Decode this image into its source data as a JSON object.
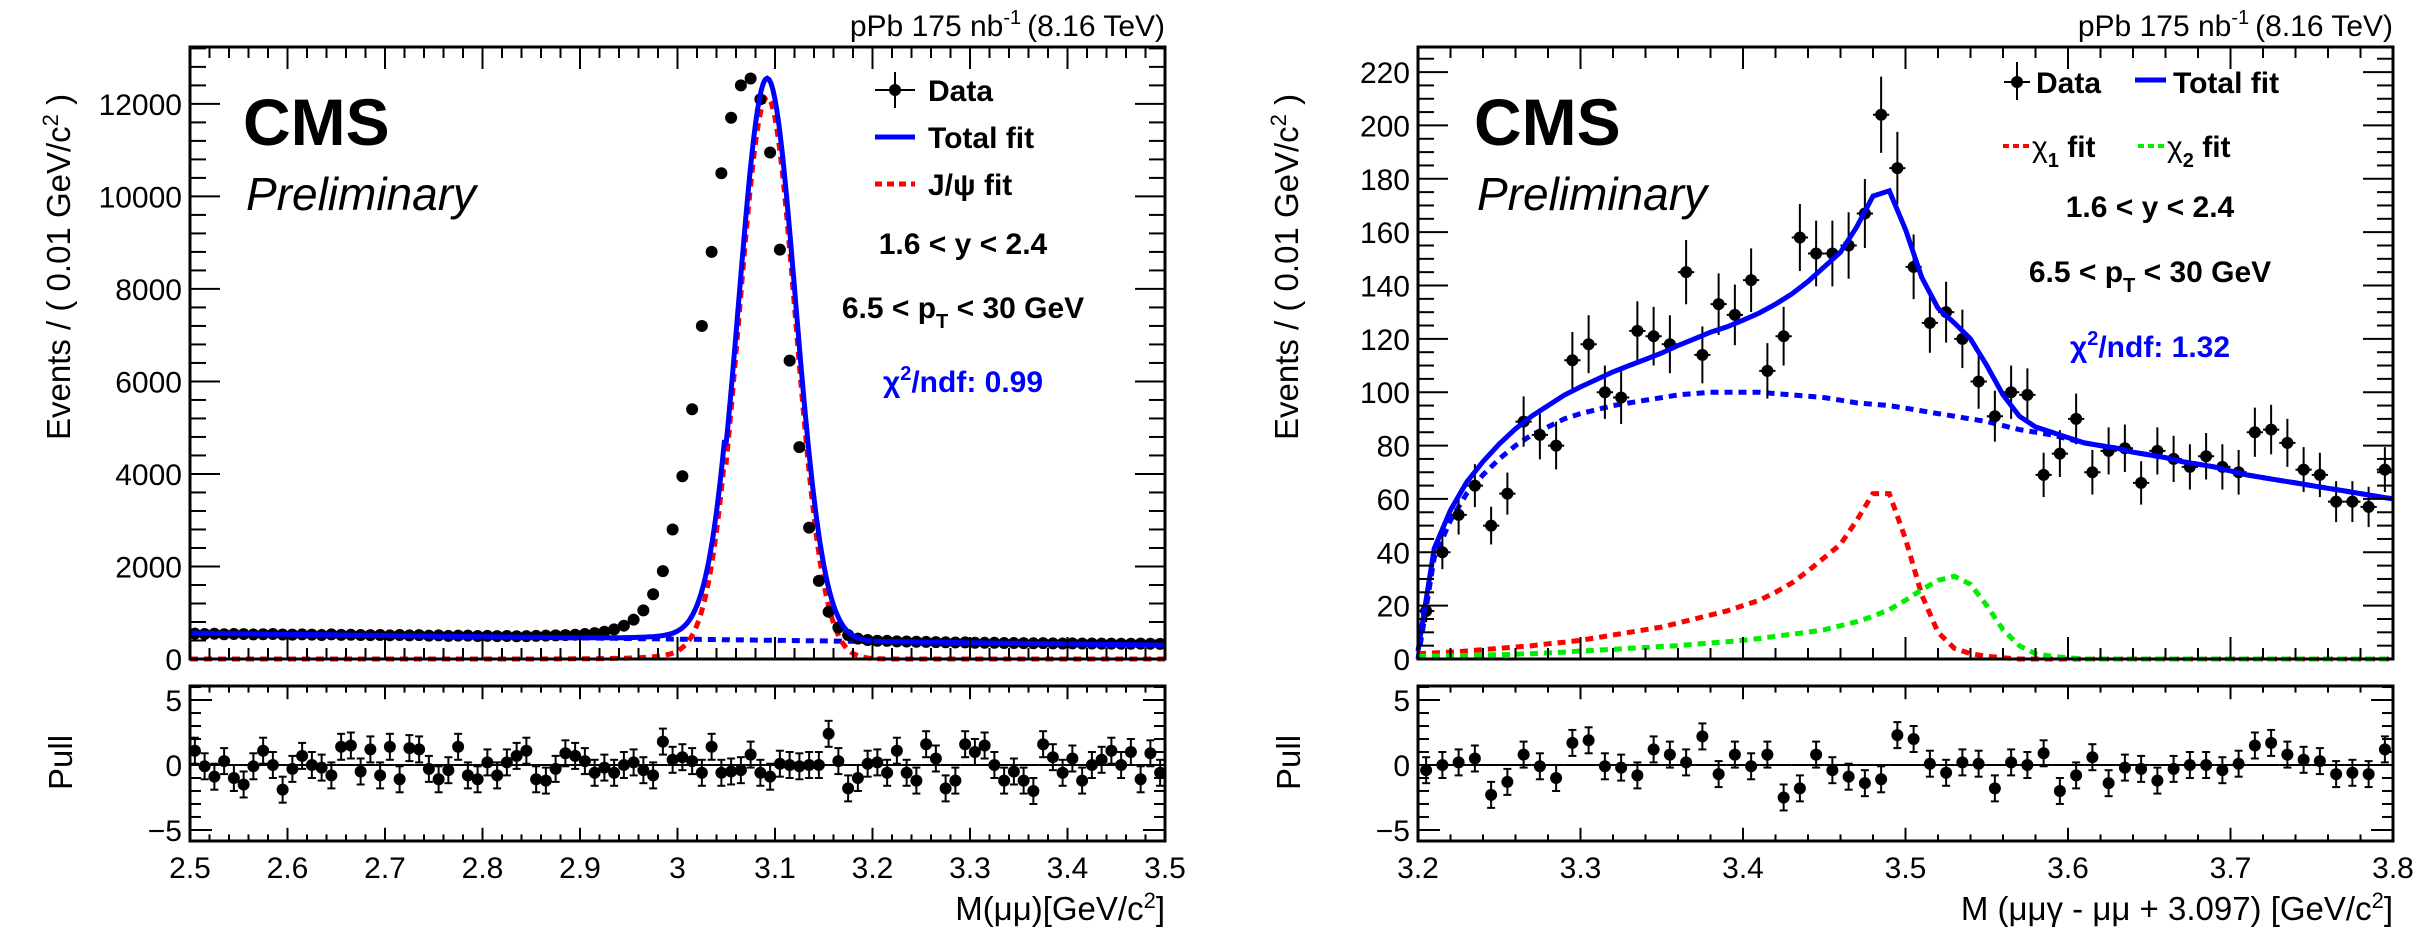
{
  "chart_data": [
    {
      "type": "line",
      "panel": "left",
      "experiment_label": "CMS",
      "status_label": "Preliminary",
      "lumi_label": {
        "system": "pPb 175 nb",
        "exponent": "-1",
        "energy": "(8.16 TeV)"
      },
      "xlabel": "M(μμ)[GeV/c",
      "xlabel_sup": "2",
      "xlabel_end": "]",
      "ylabel": "Events / ( 0.01 GeV/c",
      "ylabel_sup": "2",
      "ylabel_end": " )",
      "pull_ylabel": "Pull",
      "xlim": [
        2.5,
        3.5
      ],
      "ylim": [
        0,
        13230
      ],
      "pull_ylim": [
        -5.85,
        6.08
      ],
      "x_ticks": [
        2.5,
        2.6,
        2.7,
        2.8,
        2.9,
        3.0,
        3.1,
        3.2,
        3.3,
        3.4,
        3.5
      ],
      "x_tick_labels": [
        "2.5",
        "2.6",
        "2.7",
        "2.8",
        "2.9",
        "3",
        "3.1",
        "3.2",
        "3.3",
        "3.4",
        "3.5"
      ],
      "y_ticks": [
        0,
        2000,
        4000,
        6000,
        8000,
        10000,
        12000
      ],
      "y_tick_labels": [
        "0",
        "2000",
        "4000",
        "6000",
        "8000",
        "10000",
        "12000"
      ],
      "y_minor_step": 400,
      "pull_ticks": [
        -5,
        0,
        5
      ],
      "pull_tick_labels": [
        "−5",
        "0",
        "5"
      ],
      "legend": [
        {
          "label": "Data",
          "style": "data"
        },
        {
          "label": "Total fit",
          "style": "solid",
          "color": "#0000ff"
        },
        {
          "label": "J/ψ fit",
          "style": "dotted",
          "color": "#ff0000"
        }
      ],
      "annotations": {
        "rapidity": "1.6 < y < 2.4",
        "pt_pre": "6.5 < p",
        "pt_sub": "T",
        "pt_post": " < 30 GeV",
        "chi_pre": "χ",
        "chi_sup": "2",
        "chi_post": "/ndf: 0.99"
      },
      "bin_width": 0.01,
      "x_start": 2.505,
      "values": [
        549,
        541,
        546,
        536,
        541,
        539,
        531,
        536,
        541,
        529,
        526,
        531,
        528,
        520,
        531,
        522,
        525,
        520,
        515,
        520,
        512,
        518,
        510,
        515,
        505,
        510,
        500,
        505,
        505,
        498,
        500,
        495,
        498,
        492,
        495,
        500,
        505,
        510,
        515,
        525,
        540,
        560,
        590,
        640,
        720,
        850,
        1050,
        1400,
        1900,
        2800,
        3950,
        5400,
        7200,
        8800,
        10500,
        11700,
        12400,
        12550,
        12100,
        10950,
        8850,
        6450,
        4580,
        2840,
        1690,
        1020,
        680,
        520,
        440,
        410,
        395,
        392,
        382,
        378,
        372,
        370,
        365,
        362,
        358,
        360,
        352,
        350,
        350,
        345,
        347,
        343,
        340,
        342,
        338,
        336,
        338,
        334,
        334,
        332,
        333,
        331,
        330,
        332,
        329,
        328
      ],
      "errors_note": "Poisson",
      "fit": {
        "background_linear": {
          "x": [
            2.5,
            3.5
          ],
          "y": [
            560,
            300
          ]
        },
        "signal": {
          "mean": 3.092,
          "sigma": 0.029,
          "amplitude": 12150,
          "low_tail_strength": 0.035
        }
      },
      "pulls": [
        1.1,
        -0.1,
        -0.9,
        0.3,
        -1.0,
        -1.5,
        -0.1,
        1.1,
        0.0,
        -1.9,
        -0.3,
        0.7,
        0.0,
        -0.2,
        -0.8,
        1.4,
        1.5,
        -0.5,
        1.2,
        -0.8,
        1.4,
        -1.1,
        1.3,
        1.2,
        -0.3,
        -1.1,
        -0.4,
        1.4,
        -0.8,
        -1.1,
        0.2,
        -0.8,
        0.2,
        0.7,
        1.1,
        -1.1,
        -1.2,
        -0.3,
        0.9,
        0.7,
        0.3,
        -0.6,
        -0.2,
        -0.6,
        0.0,
        0.2,
        -0.4,
        -0.8,
        1.8,
        0.4,
        0.6,
        0.3,
        -0.6,
        1.4,
        -0.6,
        -0.5,
        -0.4,
        0.8,
        -0.6,
        -0.9,
        0.1,
        0.0,
        -0.1,
        0.0,
        0.0,
        2.4,
        0.3,
        -1.8,
        -1.0,
        0.1,
        0.2,
        -0.6,
        1.1,
        -0.6,
        -1.2,
        1.6,
        0.5,
        -1.8,
        -1.2,
        1.6,
        1.0,
        1.5,
        0.0,
        -1.2,
        -0.5,
        -1.2,
        -2.0,
        1.6,
        0.6,
        -0.6,
        0.5,
        -1.2,
        0.0,
        0.4,
        1.1,
        0.0,
        1.0,
        -1.1,
        0.9,
        -0.6
      ]
    },
    {
      "type": "line",
      "panel": "right",
      "experiment_label": "CMS",
      "status_label": "Preliminary",
      "lumi_label": {
        "system": "pPb 175 nb",
        "exponent": "-1",
        "energy": "(8.16 TeV)"
      },
      "xlabel": "M (μμγ - μμ + 3.097) [GeV/c",
      "xlabel_sup": "2",
      "xlabel_end": "]",
      "ylabel": "Events / ( 0.01 GeV/c",
      "ylabel_sup": "2",
      "ylabel_end": " )",
      "pull_ylabel": "Pull",
      "xlim": [
        3.2,
        3.8
      ],
      "ylim": [
        0,
        229.4
      ],
      "pull_ylim": [
        -5.85,
        6.08
      ],
      "x_ticks": [
        3.2,
        3.3,
        3.4,
        3.5,
        3.6,
        3.7,
        3.8
      ],
      "x_tick_labels": [
        "3.2",
        "3.3",
        "3.4",
        "3.5",
        "3.6",
        "3.7",
        "3.8"
      ],
      "y_ticks": [
        0,
        20,
        40,
        60,
        80,
        100,
        120,
        140,
        160,
        180,
        200,
        220
      ],
      "y_tick_labels": [
        "0",
        "20",
        "40",
        "60",
        "80",
        "100",
        "120",
        "140",
        "160",
        "180",
        "200",
        "220"
      ],
      "y_minor_step": 5,
      "pull_ticks": [
        -5,
        0,
        5
      ],
      "pull_tick_labels": [
        "−5",
        "0",
        "5"
      ],
      "legend": [
        {
          "label": "Data",
          "style": "data"
        },
        {
          "label": "Total fit",
          "style": "solid",
          "color": "#0000ff"
        },
        {
          "label": "χ",
          "sub": "1",
          "suffix": " fit",
          "style": "dotted",
          "color": "#ff0000"
        },
        {
          "label": "χ",
          "sub": "2",
          "suffix": " fit",
          "style": "dotted",
          "color": "#00ee00"
        }
      ],
      "annotations": {
        "rapidity": "1.6 < y < 2.4",
        "pt_pre": "6.5 < p",
        "pt_sub": "T",
        "pt_post": " < 30 GeV",
        "chi_pre": "χ",
        "chi_sup": "2",
        "chi_post": "/ndf: 1.32"
      },
      "bin_width": 0.01,
      "x_start": 3.205,
      "values": [
        18,
        40,
        54,
        65,
        50,
        62,
        89,
        84,
        80,
        112,
        118,
        100,
        98,
        123,
        121,
        118,
        145,
        114,
        133,
        129,
        142,
        108,
        121,
        158,
        152,
        152,
        155,
        167,
        204,
        184,
        147,
        126,
        130,
        120,
        104,
        91,
        100,
        99,
        69,
        77,
        90,
        70,
        78,
        79,
        66,
        78,
        75,
        72,
        76,
        72,
        70,
        85,
        86,
        81,
        71,
        69,
        59,
        59,
        57,
        71
      ],
      "fit_grid_x_start": 3.2,
      "fit_grid_step": 0.01,
      "background": [
        0,
        38,
        52,
        62,
        69,
        75,
        80,
        84,
        87,
        90,
        92,
        93.5,
        95,
        96,
        97,
        98,
        99,
        99.5,
        100,
        100,
        100,
        100,
        99.5,
        99,
        98.5,
        98,
        97,
        96,
        95.5,
        95,
        94,
        93,
        92,
        91,
        90,
        89,
        87.5,
        86,
        85,
        84,
        82.5,
        81,
        80,
        79,
        77.5,
        76.5,
        75.5,
        74,
        73,
        72,
        70.5,
        69,
        68,
        67,
        66,
        65,
        64,
        63,
        62,
        61,
        60
      ],
      "chi1": [
        2,
        2.3,
        2.6,
        3,
        3.5,
        4,
        4.5,
        5,
        5.7,
        6.3,
        7,
        8,
        9,
        10,
        11,
        12,
        13.5,
        15,
        16.5,
        18,
        20,
        22,
        25,
        28.5,
        33,
        38,
        43,
        52,
        62,
        62,
        45,
        24,
        10,
        4,
        2,
        1,
        0.5,
        0,
        0,
        0,
        0,
        0,
        0,
        0,
        0,
        0,
        0,
        0,
        0,
        0,
        0,
        0,
        0,
        0,
        0,
        0,
        0,
        0,
        0,
        0,
        0
      ],
      "chi2": [
        1,
        1.1,
        1.2,
        1.3,
        1.5,
        1.6,
        1.8,
        2,
        2.3,
        2.6,
        3,
        3.3,
        3.6,
        4,
        4.3,
        4.7,
        5,
        5.5,
        6,
        6.5,
        7,
        7.7,
        8.5,
        9.3,
        10,
        11,
        12.5,
        14,
        16,
        18.5,
        22,
        26,
        29.5,
        31,
        28,
        20,
        11,
        5,
        2,
        1,
        0.5,
        0,
        0,
        0,
        0,
        0,
        0,
        0,
        0,
        0,
        0,
        0,
        0,
        0,
        0,
        0,
        0,
        0,
        0,
        0,
        0
      ],
      "total_fit": "sum of background, chi1 and chi2",
      "pulls": [
        -0.4,
        0.0,
        0.2,
        0.5,
        -2.3,
        -1.3,
        0.8,
        -0.1,
        -1.0,
        1.7,
        1.9,
        -0.1,
        -0.2,
        -0.8,
        1.2,
        0.8,
        0.2,
        2.2,
        -0.7,
        0.8,
        -0.1,
        0.8,
        -2.5,
        -1.8,
        0.8,
        -0.4,
        -0.9,
        -1.4,
        -1.1,
        2.3,
        2.0,
        0.1,
        -0.6,
        0.2,
        0.1,
        -1.8,
        0.2,
        0.0,
        0.9,
        -2.0,
        -0.8,
        0.6,
        -1.4,
        -0.2,
        -0.3,
        -1.2,
        -0.3,
        0.0,
        0.0,
        -0.4,
        0.1,
        1.5,
        1.7,
        0.8,
        0.4,
        0.3,
        -0.7,
        -0.6,
        -0.7,
        1.2
      ]
    }
  ]
}
